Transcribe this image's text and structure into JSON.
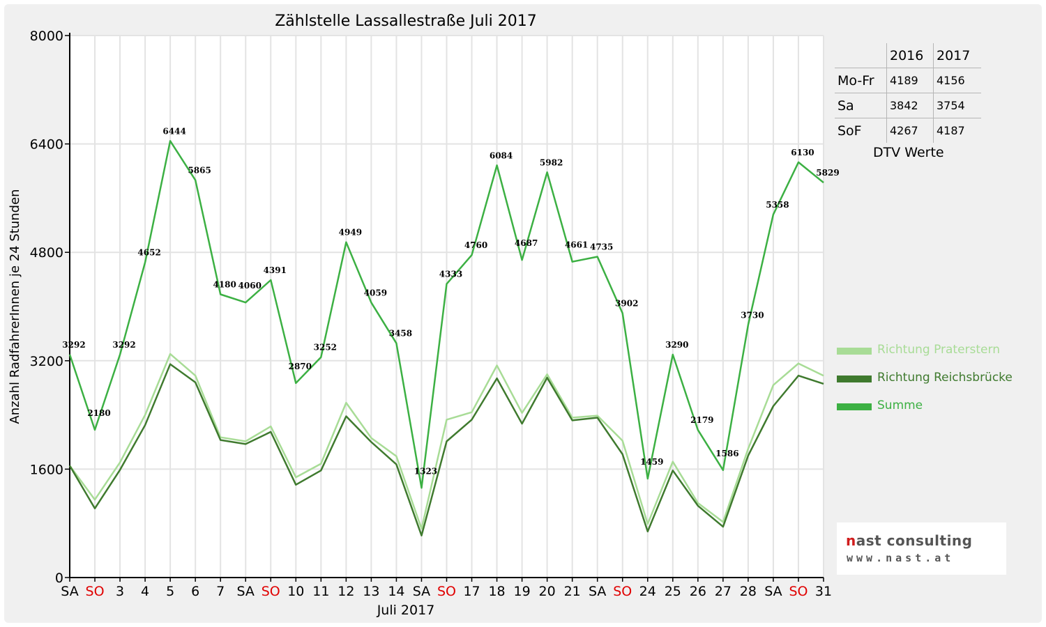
{
  "chart_data": {
    "type": "line",
    "title": "Zählstelle Lassallestraße Juli 2017",
    "xlabel": "Juli 2017",
    "ylabel": "Anzahl RadfahrerInnen je 24 Stunden",
    "ylim": [
      0,
      8000
    ],
    "yticks": [
      0,
      1600,
      3200,
      4800,
      6400,
      8000
    ],
    "grid": true,
    "legend_position": "right",
    "categories": [
      "SA",
      "SO",
      "3",
      "4",
      "5",
      "6",
      "7",
      "SA",
      "SO",
      "10",
      "11",
      "12",
      "13",
      "14",
      "SA",
      "SO",
      "17",
      "18",
      "19",
      "20",
      "21",
      "SA",
      "SO",
      "24",
      "25",
      "26",
      "27",
      "28",
      "SA",
      "SO",
      "31"
    ],
    "weekend_categories": [
      1,
      8,
      15,
      22,
      29
    ],
    "series": [
      {
        "name": "Richtung Praterstern",
        "color": "#a8dc96",
        "values": [
          1650,
          1150,
          1700,
          2400,
          3300,
          2980,
          2070,
          2010,
          2230,
          1480,
          1680,
          2580,
          2060,
          1790,
          720,
          2330,
          2440,
          3130,
          2430,
          3000,
          2360,
          2390,
          2020,
          790,
          1710,
          1100,
          820,
          1900,
          2840,
          3160,
          2980
        ]
      },
      {
        "name": "Richtung Reichsbrücke",
        "color": "#3f7a2e",
        "values": [
          1650,
          1020,
          1590,
          2250,
          3150,
          2880,
          2030,
          1970,
          2150,
          1370,
          1580,
          2380,
          2000,
          1670,
          620,
          2010,
          2330,
          2940,
          2270,
          2950,
          2320,
          2360,
          1820,
          680,
          1580,
          1060,
          750,
          1800,
          2530,
          2980,
          2860
        ]
      },
      {
        "name": "Summe",
        "color": "#3cb043",
        "values": [
          3292,
          2180,
          3292,
          4652,
          6444,
          5865,
          4180,
          4060,
          4391,
          2870,
          3252,
          4949,
          4059,
          3458,
          1323,
          4333,
          4760,
          6084,
          4687,
          5982,
          4661,
          4735,
          3902,
          1459,
          3290,
          2179,
          1586,
          3730,
          5358,
          6130,
          5829
        ]
      }
    ],
    "data_labels": [
      "3292",
      "2180",
      "3292",
      "4652",
      "6444",
      "5865",
      "4180",
      "4060",
      "4391",
      "2870",
      "3252",
      "4949",
      "4059",
      "3458",
      "1323",
      "4333",
      "4760",
      "6084",
      "4687",
      "5982",
      "4661",
      "4735",
      "3902",
      "1459",
      "3290",
      "2179",
      "1586",
      "3730",
      "5358",
      "6130",
      "5829"
    ]
  },
  "dtv_table": {
    "headers": [
      "",
      "2016",
      "2017"
    ],
    "rows": [
      {
        "label": "Mo-Fr",
        "v2016": "4189",
        "v2017": "4156"
      },
      {
        "label": "Sa",
        "v2016": "3842",
        "v2017": "3754"
      },
      {
        "label": "SoF",
        "v2016": "4267",
        "v2017": "4187"
      }
    ],
    "caption": "DTV Werte"
  },
  "legend": [
    {
      "label": "Richtung Praterstern",
      "color": "#a8dc96"
    },
    {
      "label": "Richtung Reichsbrücke",
      "color": "#3f7a2e"
    },
    {
      "label": "Summe",
      "color": "#3cb043"
    }
  ],
  "logo": {
    "name_part1": "n",
    "name_part2": "ast consulting",
    "url": "www.nast.at"
  },
  "colors": {
    "weekend_label": "#e00000",
    "grid": "#e3e3e3",
    "axis": "#000000"
  }
}
